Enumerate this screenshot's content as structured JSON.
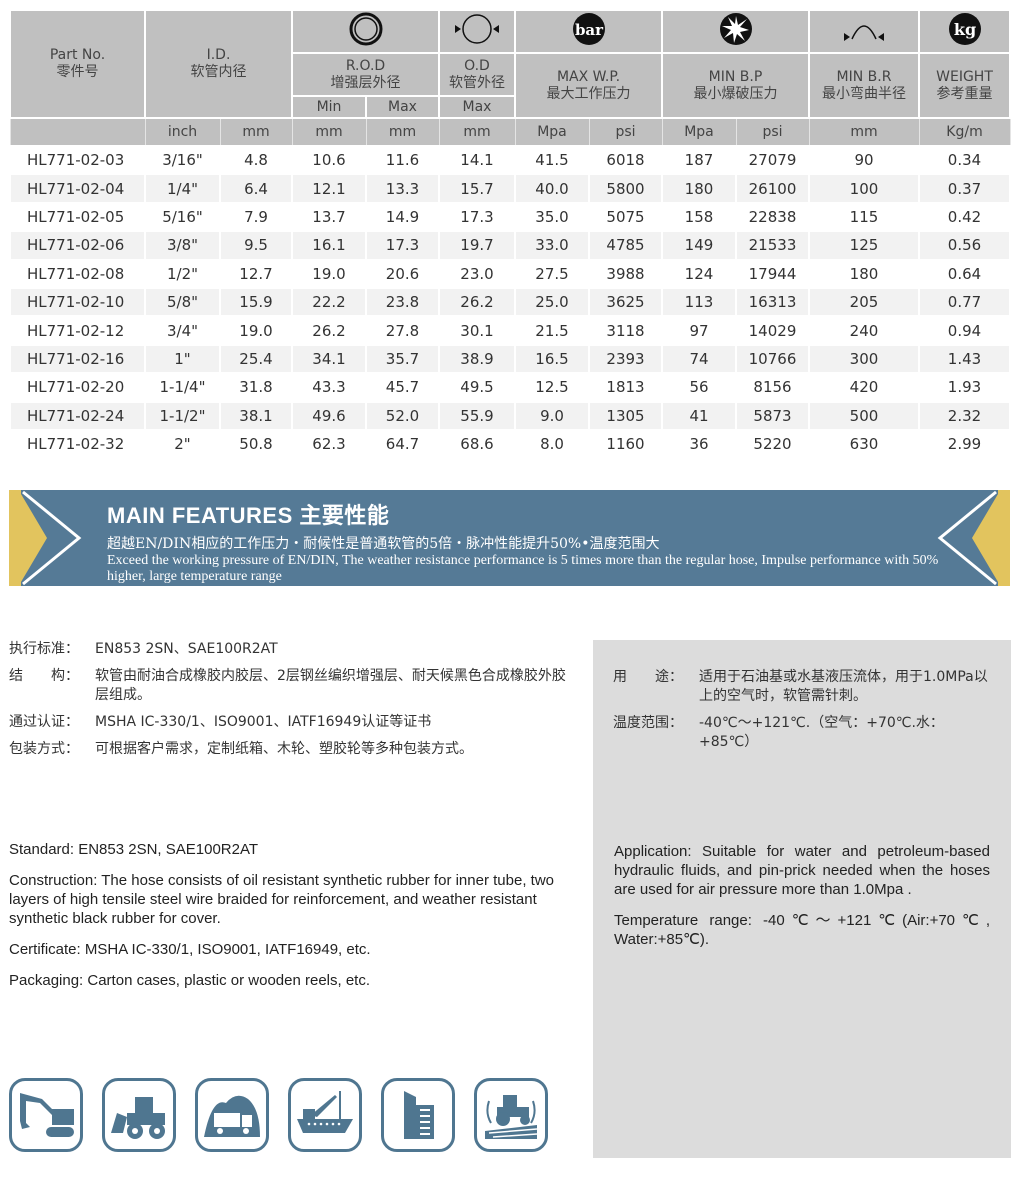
{
  "table": {
    "headers": {
      "part_no": {
        "en": "Part No.",
        "zh": "零件号"
      },
      "id": {
        "en": "I.D.",
        "zh": "软管内径"
      },
      "rod": {
        "en": "R.O.D",
        "zh": "增强层外径",
        "min": "Min",
        "max": "Max",
        "icon": "braided-ring-icon"
      },
      "od": {
        "en": "O.D",
        "zh": "软管外径",
        "max": "Max",
        "icon": "outer-diameter-icon"
      },
      "wp": {
        "en": "MAX W.P.",
        "zh": "最大工作压力",
        "icon_text": "bar"
      },
      "bp": {
        "en": "MIN B.P",
        "zh": "最小爆破压力",
        "icon": "burst-icon"
      },
      "br": {
        "en": "MIN B.R",
        "zh": "最小弯曲半径",
        "icon": "bend-radius-icon"
      },
      "weight": {
        "en": "WEIGHT",
        "zh": "参考重量",
        "icon_text": "kg"
      }
    },
    "units": [
      "",
      "inch",
      "mm",
      "mm",
      "mm",
      "mm",
      "Mpa",
      "psi",
      "Mpa",
      "psi",
      "mm",
      "Kg/m"
    ],
    "rows": [
      [
        "HL771-02-03",
        "3/16\"",
        "4.8",
        "10.6",
        "11.6",
        "14.1",
        "41.5",
        "6018",
        "187",
        "27079",
        "90",
        "0.34"
      ],
      [
        "HL771-02-04",
        "1/4\"",
        "6.4",
        "12.1",
        "13.3",
        "15.7",
        "40.0",
        "5800",
        "180",
        "26100",
        "100",
        "0.37"
      ],
      [
        "HL771-02-05",
        "5/16\"",
        "7.9",
        "13.7",
        "14.9",
        "17.3",
        "35.0",
        "5075",
        "158",
        "22838",
        "115",
        "0.42"
      ],
      [
        "HL771-02-06",
        "3/8\"",
        "9.5",
        "16.1",
        "17.3",
        "19.7",
        "33.0",
        "4785",
        "149",
        "21533",
        "125",
        "0.56"
      ],
      [
        "HL771-02-08",
        "1/2\"",
        "12.7",
        "19.0",
        "20.6",
        "23.0",
        "27.5",
        "3988",
        "124",
        "17944",
        "180",
        "0.64"
      ],
      [
        "HL771-02-10",
        "5/8\"",
        "15.9",
        "22.2",
        "23.8",
        "26.2",
        "25.0",
        "3625",
        "113",
        "16313",
        "205",
        "0.77"
      ],
      [
        "HL771-02-12",
        "3/4\"",
        "19.0",
        "26.2",
        "27.8",
        "30.1",
        "21.5",
        "3118",
        "97",
        "14029",
        "240",
        "0.94"
      ],
      [
        "HL771-02-16",
        "1\"",
        "25.4",
        "34.1",
        "35.7",
        "38.9",
        "16.5",
        "2393",
        "74",
        "10766",
        "300",
        "1.43"
      ],
      [
        "HL771-02-20",
        "1-1/4\"",
        "31.8",
        "43.3",
        "45.7",
        "49.5",
        "12.5",
        "1813",
        "56",
        "8156",
        "420",
        "1.93"
      ],
      [
        "HL771-02-24",
        "1-1/2\"",
        "38.1",
        "49.6",
        "52.0",
        "55.9",
        "9.0",
        "1305",
        "41",
        "5873",
        "500",
        "2.32"
      ],
      [
        "HL771-02-32",
        "2\"",
        "50.8",
        "62.3",
        "64.7",
        "68.6",
        "8.0",
        "1160",
        "36",
        "5220",
        "630",
        "2.99"
      ]
    ]
  },
  "features": {
    "title": "MAIN FEATURES 主要性能",
    "zh": "超越EN/DIN相应的工作压力・耐候性是普通软管的5倍・脉冲性能提升50%•温度范围大",
    "en": "Exceed the working pressure of EN/DIN, The weather resistance performance is 5 times more than the regular hose, Impulse performance with 50% higher, large temperature range",
    "colors": {
      "banner": "#557a96",
      "accent": "#e2c45e"
    }
  },
  "specs_zh": [
    {
      "k": "执行标准：",
      "v": "EN853 2SN、SAE100R2AT"
    },
    {
      "k": "结　　构：",
      "v": "软管由耐油合成橡胶内胶层、2层钢丝编织增强层、耐天候黑色合成橡胶外胶层组成。"
    },
    {
      "k": "通过认证：",
      "v": "MSHA IC-330/1、ISO9001、IATF16949认证等证书"
    },
    {
      "k": "包装方式：",
      "v": "可根据客户需求，定制纸箱、木轮、塑胶轮等多种包装方式。"
    }
  ],
  "specs_zh_right": [
    {
      "k": "用　　途：",
      "v": "适用于石油基或水基液压流体，用于1.0MPa以上的空气时，软管需针刺。"
    },
    {
      "k": "温度范围：",
      "v": "-40℃～+121℃.（空气：+70℃.水：+85℃）"
    }
  ],
  "specs_en": [
    "Standard: EN853 2SN, SAE100R2AT",
    "Construction: The hose consists of oil resistant synthetic rubber for inner tube, two layers of high tensile steel wire braided for reinforcement, and weather resistant synthetic black rubber for cover.",
    "Certificate: MSHA IC-330/1, ISO9001, IATF16949,  etc.",
    "Packaging: Carton cases, plastic or wooden reels, etc."
  ],
  "specs_en_right": [
    "Application: Suitable for water and petroleum-based hydraulic fluids, and pin-prick needed when the hoses are used for air pressure more than 1.0Mpa .",
    "Temperature range: -40℃～+121℃(Air:+70℃, Water:+85℃)."
  ],
  "applications": [
    "excavator-icon",
    "wheel-loader-icon",
    "mining-truck-icon",
    "ship-icon",
    "building-icon",
    "agriculture-tractor-icon"
  ]
}
